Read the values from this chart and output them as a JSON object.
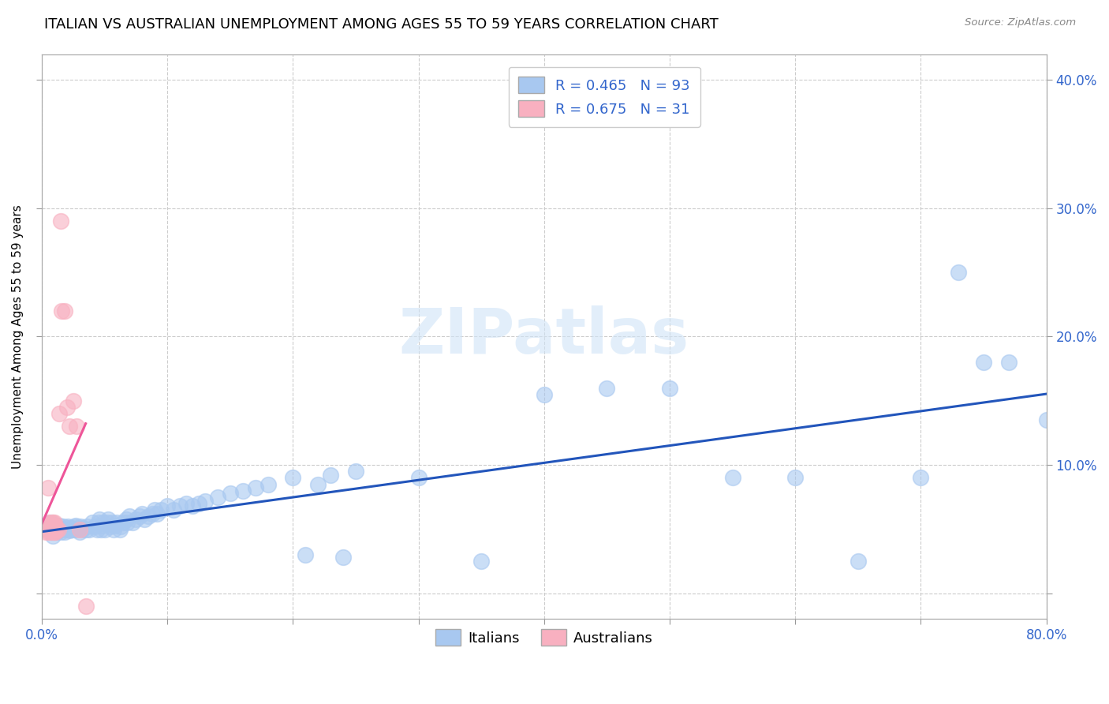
{
  "title": "ITALIAN VS AUSTRALIAN UNEMPLOYMENT AMONG AGES 55 TO 59 YEARS CORRELATION CHART",
  "source": "Source: ZipAtlas.com",
  "ylabel": "Unemployment Among Ages 55 to 59 years",
  "xlim": [
    0.0,
    0.8
  ],
  "ylim": [
    -0.02,
    0.42
  ],
  "xticks": [
    0.0,
    0.1,
    0.2,
    0.3,
    0.4,
    0.5,
    0.6,
    0.7,
    0.8
  ],
  "yticks": [
    0.0,
    0.1,
    0.2,
    0.3,
    0.4
  ],
  "background_color": "#ffffff",
  "grid_color": "#cccccc",
  "italians_color": "#a8c8f0",
  "australians_color": "#f8b0c0",
  "italian_line_color": "#2255bb",
  "australian_line_color": "#ee5599",
  "R_italian": 0.465,
  "N_italian": 93,
  "R_australian": 0.675,
  "N_australian": 31,
  "legend_text_color": "#3366cc",
  "title_fontsize": 13,
  "axis_label_fontsize": 11,
  "tick_fontsize": 12,
  "watermark": "ZIPatlas",
  "italians_x": [
    0.005,
    0.007,
    0.008,
    0.009,
    0.01,
    0.011,
    0.012,
    0.013,
    0.014,
    0.015,
    0.016,
    0.017,
    0.018,
    0.019,
    0.02,
    0.021,
    0.022,
    0.023,
    0.024,
    0.025,
    0.026,
    0.027,
    0.028,
    0.03,
    0.031,
    0.032,
    0.033,
    0.035,
    0.036,
    0.038,
    0.04,
    0.042,
    0.044,
    0.045,
    0.046,
    0.047,
    0.048,
    0.049,
    0.05,
    0.052,
    0.053,
    0.055,
    0.056,
    0.057,
    0.058,
    0.06,
    0.062,
    0.063,
    0.065,
    0.067,
    0.068,
    0.07,
    0.072,
    0.075,
    0.078,
    0.08,
    0.082,
    0.085,
    0.088,
    0.09,
    0.092,
    0.095,
    0.1,
    0.105,
    0.11,
    0.115,
    0.12,
    0.125,
    0.13,
    0.14,
    0.15,
    0.16,
    0.17,
    0.18,
    0.2,
    0.21,
    0.22,
    0.23,
    0.24,
    0.25,
    0.3,
    0.35,
    0.4,
    0.45,
    0.5,
    0.55,
    0.6,
    0.65,
    0.7,
    0.73,
    0.75,
    0.77,
    0.8
  ],
  "italians_y": [
    0.05,
    0.055,
    0.048,
    0.045,
    0.05,
    0.052,
    0.048,
    0.05,
    0.053,
    0.048,
    0.05,
    0.052,
    0.048,
    0.05,
    0.051,
    0.052,
    0.049,
    0.05,
    0.051,
    0.05,
    0.052,
    0.053,
    0.05,
    0.048,
    0.052,
    0.05,
    0.051,
    0.05,
    0.052,
    0.05,
    0.055,
    0.052,
    0.05,
    0.055,
    0.058,
    0.05,
    0.053,
    0.055,
    0.05,
    0.055,
    0.058,
    0.052,
    0.055,
    0.05,
    0.053,
    0.055,
    0.05,
    0.052,
    0.055,
    0.058,
    0.055,
    0.06,
    0.055,
    0.058,
    0.06,
    0.062,
    0.058,
    0.06,
    0.062,
    0.065,
    0.062,
    0.065,
    0.068,
    0.065,
    0.068,
    0.07,
    0.068,
    0.07,
    0.072,
    0.075,
    0.078,
    0.08,
    0.082,
    0.085,
    0.09,
    0.03,
    0.085,
    0.092,
    0.028,
    0.095,
    0.09,
    0.025,
    0.155,
    0.16,
    0.16,
    0.09,
    0.09,
    0.025,
    0.09,
    0.25,
    0.18,
    0.18,
    0.135
  ],
  "australians_x": [
    0.003,
    0.004,
    0.005,
    0.005,
    0.006,
    0.006,
    0.007,
    0.007,
    0.008,
    0.008,
    0.009,
    0.009,
    0.009,
    0.01,
    0.01,
    0.01,
    0.01,
    0.011,
    0.011,
    0.012,
    0.013,
    0.014,
    0.015,
    0.016,
    0.018,
    0.02,
    0.022,
    0.025,
    0.028,
    0.03,
    0.035
  ],
  "australians_y": [
    0.048,
    0.05,
    0.048,
    0.082,
    0.05,
    0.055,
    0.048,
    0.052,
    0.05,
    0.055,
    0.048,
    0.05,
    0.055,
    0.048,
    0.05,
    0.053,
    0.055,
    0.048,
    0.052,
    0.05,
    0.05,
    0.14,
    0.29,
    0.22,
    0.22,
    0.145,
    0.13,
    0.15,
    0.13,
    0.05,
    -0.01
  ]
}
